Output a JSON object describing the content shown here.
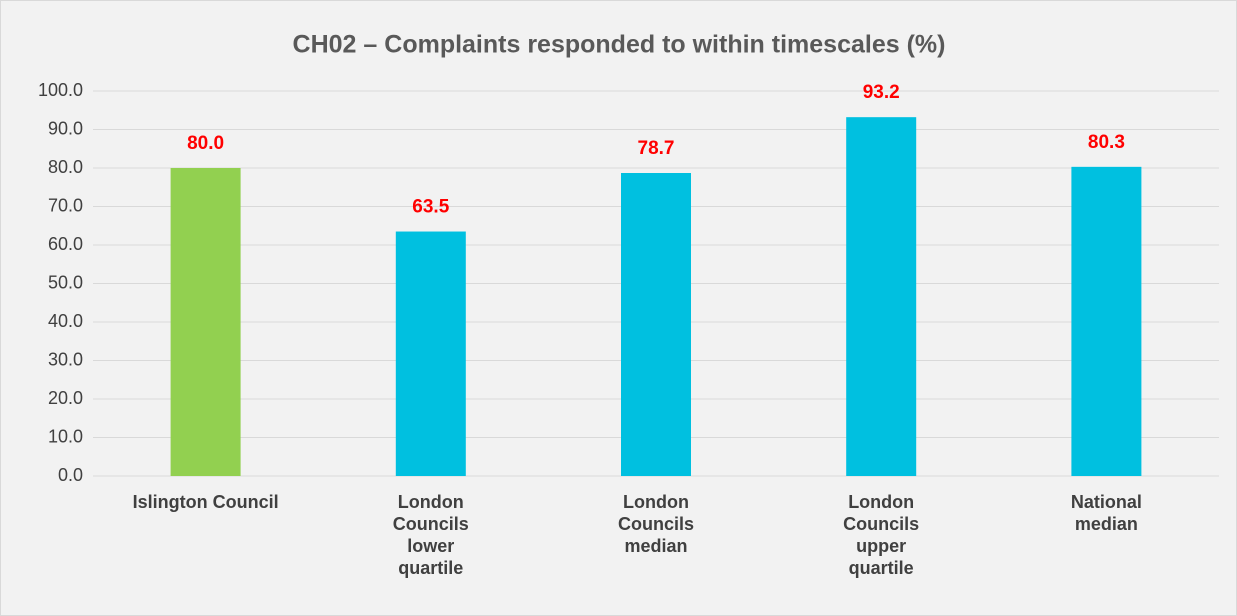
{
  "chart_data": {
    "type": "bar",
    "title": "CH02 – Complaints responded to within timescales (%)",
    "categories": [
      "Islington Council",
      "London Councils lower quartile",
      "London Councils median",
      "London Councils upper quartile",
      "National median"
    ],
    "values": [
      80.0,
      63.5,
      78.7,
      93.2,
      80.3
    ],
    "value_labels": [
      "80.0",
      "63.5",
      "78.7",
      "93.2",
      "80.3"
    ],
    "colors": [
      "#92d050",
      "#00c0e0",
      "#00c0e0",
      "#00c0e0",
      "#00c0e0"
    ],
    "value_label_color": "#ff0000",
    "ylim": [
      0,
      100
    ],
    "yticks": [
      {
        "value": 0,
        "label": "0.0"
      },
      {
        "value": 10,
        "label": "10.0"
      },
      {
        "value": 20,
        "label": "20.0"
      },
      {
        "value": 30,
        "label": "30.0"
      },
      {
        "value": 40,
        "label": "40.0"
      },
      {
        "value": 50,
        "label": "50.0"
      },
      {
        "value": 60,
        "label": "60.0"
      },
      {
        "value": 70,
        "label": "70.0"
      },
      {
        "value": 80,
        "label": "80.0"
      },
      {
        "value": 90,
        "label": "90.0"
      },
      {
        "value": 100,
        "label": "100.0"
      }
    ],
    "grid": true
  }
}
